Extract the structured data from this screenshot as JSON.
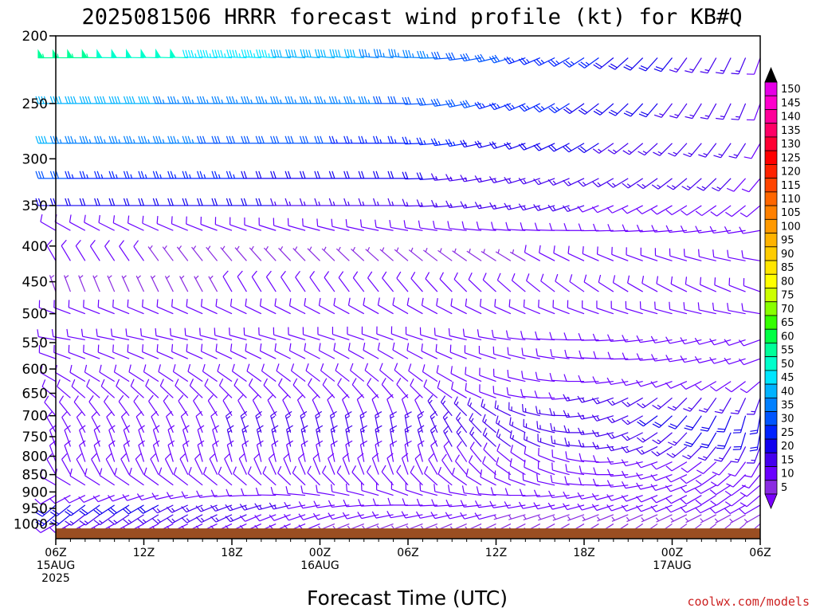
{
  "chart_data": {
    "type": "wind-barb time-height",
    "title": "2025081506 HRRR forecast wind profile (kt) for KB#Q",
    "xlabel": "Forecast Time (UTC)",
    "ylabel": "",
    "credit": "coolwx.com/models",
    "y_axis": {
      "scale": "log",
      "ylim": [
        1050,
        200
      ],
      "ticks": [
        "200",
        "250",
        "300",
        "350",
        "400",
        "450",
        "500",
        "550",
        "600",
        "650",
        "700",
        "750",
        "800",
        "850",
        "900",
        "950",
        "1000"
      ],
      "tick_values": [
        200,
        250,
        300,
        350,
        400,
        450,
        500,
        550,
        600,
        650,
        700,
        750,
        800,
        850,
        900,
        950,
        1000
      ]
    },
    "x_axis": {
      "xlim": [
        0,
        48
      ],
      "ticks": [
        {
          "hour": 0,
          "line1": "06Z",
          "line2": "15AUG",
          "line3": "2025"
        },
        {
          "hour": 6,
          "line1": "12Z",
          "line2": "",
          "line3": ""
        },
        {
          "hour": 12,
          "line1": "18Z",
          "line2": "",
          "line3": ""
        },
        {
          "hour": 18,
          "line1": "00Z",
          "line2": "16AUG",
          "line3": ""
        },
        {
          "hour": 24,
          "line1": "06Z",
          "line2": "",
          "line3": ""
        },
        {
          "hour": 30,
          "line1": "12Z",
          "line2": "",
          "line3": ""
        },
        {
          "hour": 36,
          "line1": "18Z",
          "line2": "",
          "line3": ""
        },
        {
          "hour": 42,
          "line1": "00Z",
          "line2": "17AUG",
          "line3": ""
        },
        {
          "hour": 48,
          "line1": "06Z",
          "line2": "",
          "line3": ""
        }
      ]
    },
    "colorbar": {
      "labels": [
        "150",
        "145",
        "140",
        "135",
        "130",
        "125",
        "120",
        "115",
        "110",
        "105",
        "100",
        "95",
        "90",
        "85",
        "80",
        "75",
        "70",
        "65",
        "60",
        "55",
        "50",
        "45",
        "40",
        "35",
        "30",
        "25",
        "20",
        "15",
        "10",
        "5"
      ],
      "colors": [
        "#e600e6",
        "#ff00cc",
        "#ff0099",
        "#ff0066",
        "#ff0033",
        "#ff0000",
        "#ff2200",
        "#ff4400",
        "#ff6600",
        "#ff8000",
        "#ff9900",
        "#ffb300",
        "#ffcc00",
        "#ffe600",
        "#ffff00",
        "#ccff00",
        "#88ff00",
        "#33ff00",
        "#00ff44",
        "#00ff99",
        "#00ffcc",
        "#00e6ff",
        "#00b3ff",
        "#0080ff",
        "#0055ff",
        "#0022ff",
        "#1100ee",
        "#4400ee",
        "#6a00ff",
        "#8a2be2"
      ],
      "top_arrow_color": "#000000",
      "bottom_arrow_color": "#7a00ff"
    },
    "terrain_color": "#9a4e22",
    "profiles": [
      {
        "hours": [
          0,
          24
        ],
        "levels": [
          {
            "p": 215,
            "speed": [
              55,
              35
            ],
            "dir": [
              270,
              275
            ]
          },
          {
            "p": 250,
            "speed": [
              40,
              32
            ],
            "dir": [
              270,
              270
            ]
          },
          {
            "p": 285,
            "speed": [
              38,
              25
            ],
            "dir": [
              270,
              270
            ]
          },
          {
            "p": 320,
            "speed": [
              28,
              18
            ],
            "dir": [
              270,
              270
            ]
          },
          {
            "p": 350,
            "speed": [
              22,
              15
            ],
            "dir": [
              270,
              270
            ]
          },
          {
            "p": 380,
            "speed": [
              10,
              12
            ],
            "dir": [
              300,
              280
            ]
          },
          {
            "p": 420,
            "speed": [
              8,
              6
            ],
            "dir": [
              330,
              310
            ]
          },
          {
            "p": 465,
            "speed": [
              7,
              8
            ],
            "dir": [
              340,
              320
            ]
          },
          {
            "p": 500,
            "speed": [
              10,
              10
            ],
            "dir": [
              290,
              300
            ]
          },
          {
            "p": 545,
            "speed": [
              10,
              9
            ],
            "dir": [
              280,
              290
            ]
          },
          {
            "p": 580,
            "speed": [
              9,
              10
            ],
            "dir": [
              290,
              300
            ]
          },
          {
            "p": 625,
            "speed": [
              10,
              10
            ],
            "dir": [
              300,
              310
            ]
          },
          {
            "p": 660,
            "speed": [
              10,
              10
            ],
            "dir": [
              310,
              320
            ]
          },
          {
            "p": 700,
            "speed": [
              10,
              12
            ],
            "dir": [
              320,
              340
            ]
          },
          {
            "p": 740,
            "speed": [
              10,
              15
            ],
            "dir": [
              330,
              350
            ]
          },
          {
            "p": 775,
            "speed": [
              10,
              15
            ],
            "dir": [
              340,
              350
            ]
          },
          {
            "p": 815,
            "speed": [
              10,
              12
            ],
            "dir": [
              340,
              350
            ]
          },
          {
            "p": 850,
            "speed": [
              8,
              10
            ],
            "dir": [
              330,
              340
            ]
          },
          {
            "p": 880,
            "speed": [
              10,
              8
            ],
            "dir": [
              300,
              320
            ]
          },
          {
            "p": 910,
            "speed": [
              12,
              8
            ],
            "dir": [
              240,
              290
            ]
          },
          {
            "p": 940,
            "speed": [
              22,
              8
            ],
            "dir": [
              230,
              270
            ]
          },
          {
            "p": 970,
            "speed": [
              18,
              8
            ],
            "dir": [
              230,
              260
            ]
          },
          {
            "p": 1000,
            "speed": [
              12,
              6
            ],
            "dir": [
              240,
              250
            ]
          }
        ]
      },
      {
        "hours": [
          24,
          48
        ],
        "levels": [
          {
            "p": 215,
            "speed": [
              35,
              12
            ],
            "dir": [
              275,
              200
            ]
          },
          {
            "p": 250,
            "speed": [
              32,
              12
            ],
            "dir": [
              270,
              200
            ]
          },
          {
            "p": 285,
            "speed": [
              25,
              12
            ],
            "dir": [
              270,
              210
            ]
          },
          {
            "p": 320,
            "speed": [
              18,
              12
            ],
            "dir": [
              270,
              220
            ]
          },
          {
            "p": 350,
            "speed": [
              15,
              10
            ],
            "dir": [
              270,
              230
            ]
          },
          {
            "p": 380,
            "speed": [
              12,
              10
            ],
            "dir": [
              280,
              260
            ]
          },
          {
            "p": 420,
            "speed": [
              6,
              10
            ],
            "dir": [
              310,
              280
            ]
          },
          {
            "p": 465,
            "speed": [
              8,
              10
            ],
            "dir": [
              320,
              290
            ]
          },
          {
            "p": 500,
            "speed": [
              10,
              10
            ],
            "dir": [
              300,
              280
            ]
          },
          {
            "p": 545,
            "speed": [
              9,
              9
            ],
            "dir": [
              290,
              250
            ]
          },
          {
            "p": 580,
            "speed": [
              10,
              10
            ],
            "dir": [
              300,
              250
            ]
          },
          {
            "p": 625,
            "speed": [
              10,
              12
            ],
            "dir": [
              310,
              230
            ]
          },
          {
            "p": 660,
            "speed": [
              10,
              15
            ],
            "dir": [
              320,
              200
            ]
          },
          {
            "p": 700,
            "speed": [
              12,
              20
            ],
            "dir": [
              340,
              190
            ]
          },
          {
            "p": 740,
            "speed": [
              15,
              18
            ],
            "dir": [
              350,
              190
            ]
          },
          {
            "p": 775,
            "speed": [
              15,
              15
            ],
            "dir": [
              350,
              200
            ]
          },
          {
            "p": 815,
            "speed": [
              12,
              12
            ],
            "dir": [
              350,
              210
            ]
          },
          {
            "p": 850,
            "speed": [
              10,
              10
            ],
            "dir": [
              340,
              220
            ]
          },
          {
            "p": 880,
            "speed": [
              8,
              10
            ],
            "dir": [
              320,
              230
            ]
          },
          {
            "p": 910,
            "speed": [
              8,
              8
            ],
            "dir": [
              290,
              230
            ]
          },
          {
            "p": 940,
            "speed": [
              8,
              8
            ],
            "dir": [
              270,
              240
            ]
          },
          {
            "p": 970,
            "speed": [
              8,
              6
            ],
            "dir": [
              260,
              240
            ]
          },
          {
            "p": 1000,
            "speed": [
              6,
              6
            ],
            "dir": [
              250,
              230
            ]
          }
        ]
      }
    ]
  }
}
